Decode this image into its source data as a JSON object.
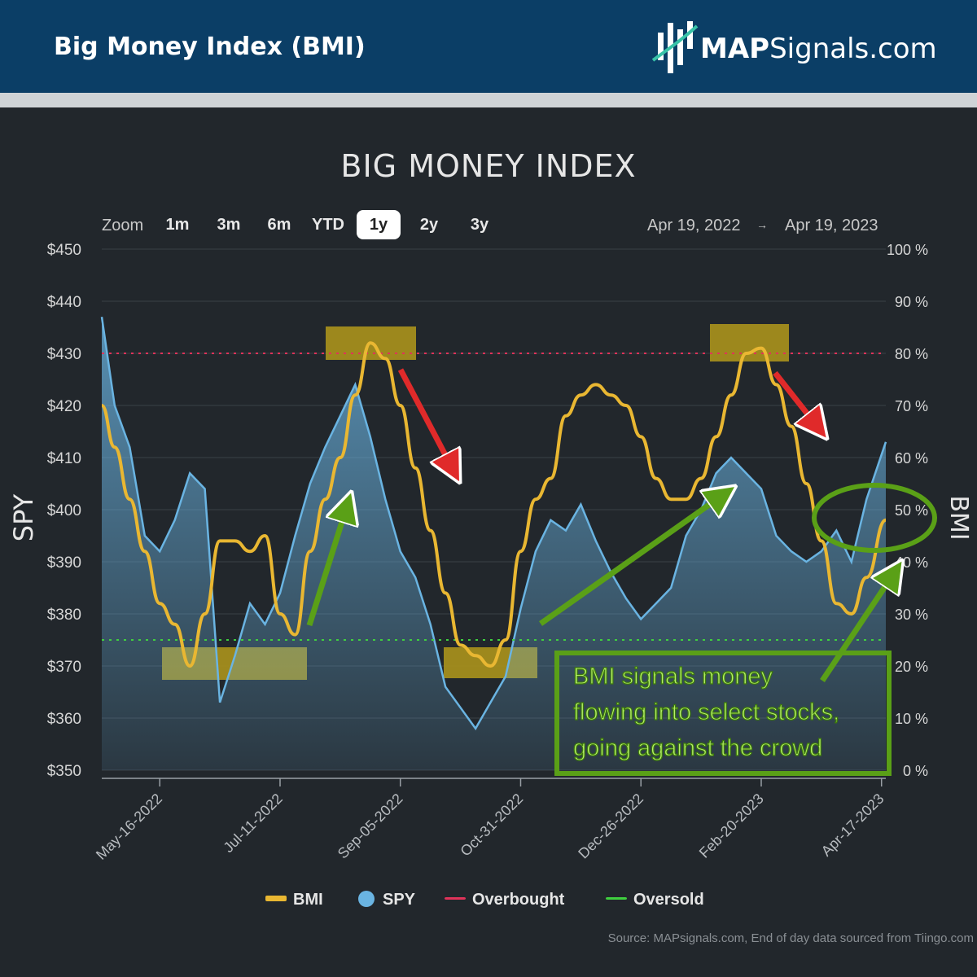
{
  "header": {
    "title": "Big Money Index (BMI)",
    "logo_bold": "MAP",
    "logo_rest": "Signals.com"
  },
  "chart_title": "BIG MONEY INDEX",
  "zoom": {
    "label": "Zoom",
    "buttons": [
      "1m",
      "3m",
      "6m",
      "YTD",
      "1y",
      "2y",
      "3y"
    ],
    "active": "1y"
  },
  "date_range": {
    "from": "Apr 19, 2022",
    "to": "Apr 19, 2023",
    "arrow": "→"
  },
  "axes": {
    "left_label": "SPY",
    "right_label": "BMI",
    "left_ticks": [
      "$450",
      "$440",
      "$430",
      "$420",
      "$410",
      "$400",
      "$390",
      "$380",
      "$370",
      "$360",
      "$350"
    ],
    "right_ticks": [
      "100 %",
      "90 %",
      "80 %",
      "70 %",
      "60 %",
      "50 %",
      "40 %",
      "30 %",
      "20 %",
      "10 %",
      "0 %"
    ],
    "x_ticks": [
      "May-16-2022",
      "Jul-11-2022",
      "Sep-05-2022",
      "Oct-31-2022",
      "Dec-26-2022",
      "Feb-20-2023",
      "Apr-17-2023"
    ]
  },
  "legend": [
    "BMI",
    "SPY",
    "Overbought",
    "Oversold"
  ],
  "annotation": [
    "BMI signals money",
    "flowing into select stocks,",
    "going against the crowd"
  ],
  "source": "Source: MAPsignals.com, End of day data sourced from Tiingo.com",
  "colors": {
    "bmi": "#e9b732",
    "spy": "#6ab4e2",
    "overbought": "#e0335a",
    "oversold": "#3fcf3f",
    "annotation": "#5aa017",
    "highlight": "#a8901c",
    "down_arrow": "#e02a2a"
  },
  "chart_data": {
    "type": "line",
    "x_start": "2022-04-19",
    "x_end": "2023-04-19",
    "left_axis": {
      "label": "SPY",
      "ylim": [
        350,
        450
      ]
    },
    "right_axis": {
      "label": "BMI",
      "ylim": [
        0,
        100
      ]
    },
    "overbought_level": 80,
    "oversold_level": 25,
    "series": [
      {
        "name": "SPY",
        "axis": "left",
        "kind": "area",
        "x": [
          "2022-04-19",
          "2022-04-25",
          "2022-05-02",
          "2022-05-09",
          "2022-05-16",
          "2022-05-23",
          "2022-05-30",
          "2022-06-06",
          "2022-06-13",
          "2022-06-20",
          "2022-06-27",
          "2022-07-04",
          "2022-07-11",
          "2022-07-18",
          "2022-07-25",
          "2022-08-01",
          "2022-08-08",
          "2022-08-15",
          "2022-08-22",
          "2022-08-29",
          "2022-09-05",
          "2022-09-12",
          "2022-09-19",
          "2022-09-26",
          "2022-10-03",
          "2022-10-10",
          "2022-10-17",
          "2022-10-24",
          "2022-10-31",
          "2022-11-07",
          "2022-11-14",
          "2022-11-21",
          "2022-11-28",
          "2022-12-05",
          "2022-12-12",
          "2022-12-19",
          "2022-12-26",
          "2023-01-02",
          "2023-01-09",
          "2023-01-16",
          "2023-01-23",
          "2023-01-30",
          "2023-02-06",
          "2023-02-13",
          "2023-02-20",
          "2023-02-27",
          "2023-03-06",
          "2023-03-13",
          "2023-03-20",
          "2023-03-27",
          "2023-04-03",
          "2023-04-10",
          "2023-04-19"
        ],
        "values": [
          437,
          420,
          412,
          395,
          392,
          398,
          407,
          404,
          363,
          372,
          382,
          378,
          384,
          395,
          405,
          412,
          418,
          424,
          414,
          402,
          392,
          387,
          378,
          366,
          362,
          358,
          363,
          368,
          381,
          392,
          398,
          396,
          401,
          394,
          388,
          383,
          379,
          382,
          385,
          395,
          400,
          407,
          410,
          407,
          404,
          395,
          392,
          390,
          392,
          396,
          390,
          402,
          413
        ]
      },
      {
        "name": "BMI",
        "axis": "right",
        "kind": "line",
        "x": [
          "2022-04-19",
          "2022-04-25",
          "2022-05-02",
          "2022-05-09",
          "2022-05-16",
          "2022-05-23",
          "2022-05-30",
          "2022-06-06",
          "2022-06-13",
          "2022-06-20",
          "2022-06-27",
          "2022-07-04",
          "2022-07-11",
          "2022-07-18",
          "2022-07-25",
          "2022-08-01",
          "2022-08-08",
          "2022-08-15",
          "2022-08-22",
          "2022-08-29",
          "2022-09-05",
          "2022-09-12",
          "2022-09-19",
          "2022-09-26",
          "2022-10-03",
          "2022-10-10",
          "2022-10-17",
          "2022-10-24",
          "2022-10-31",
          "2022-11-07",
          "2022-11-14",
          "2022-11-21",
          "2022-11-28",
          "2022-12-05",
          "2022-12-12",
          "2022-12-19",
          "2022-12-26",
          "2023-01-02",
          "2023-01-09",
          "2023-01-16",
          "2023-01-23",
          "2023-01-30",
          "2023-02-06",
          "2023-02-13",
          "2023-02-20",
          "2023-02-27",
          "2023-03-06",
          "2023-03-13",
          "2023-03-20",
          "2023-03-27",
          "2023-04-03",
          "2023-04-10",
          "2023-04-19"
        ],
        "values": [
          70,
          62,
          52,
          42,
          32,
          28,
          20,
          30,
          44,
          44,
          42,
          45,
          30,
          26,
          42,
          52,
          60,
          72,
          82,
          79,
          70,
          58,
          46,
          34,
          24,
          22,
          20,
          25,
          42,
          52,
          56,
          68,
          72,
          74,
          72,
          70,
          64,
          56,
          52,
          52,
          56,
          64,
          72,
          80,
          81,
          74,
          66,
          55,
          44,
          32,
          30,
          37,
          48
        ]
      }
    ]
  }
}
